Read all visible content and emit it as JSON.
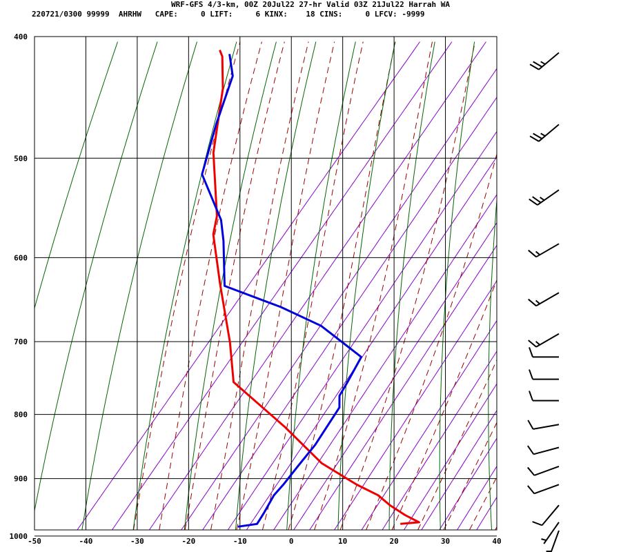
{
  "header": {
    "title": "WRF-GFS 4/3-km, 00Z 20Jul22 27-hr Valid 03Z 21Jul22 Harrah WA",
    "stats": "220721/0300 99999  AHRHW   CAPE:     0 LIFT:     6 KINX:    18 CINS:     0 LFCV: -9999"
  },
  "chart_data": {
    "type": "line",
    "chart_kind": "skew-T log-p sounding",
    "title": "WRF-GFS 4/3-km, 00Z 20Jul22 27-hr Valid 03Z 21Jul22 Harrah WA",
    "xlabel": "",
    "ylabel": "",
    "x_ticks": [
      -50,
      -40,
      -30,
      -20,
      -10,
      0,
      10,
      20,
      30,
      40
    ],
    "x_tick_labels": [
      "-50",
      "-40",
      "-30",
      "-20",
      "-10",
      "0",
      "10",
      "20",
      "30",
      "40"
    ],
    "y_ticks": [
      400,
      500,
      600,
      700,
      800,
      900,
      1000
    ],
    "y_tick_labels": [
      "400",
      "500",
      "600",
      "700",
      "800",
      "900",
      "1000"
    ],
    "grid": true,
    "colors": {
      "temperature": "#ee0000",
      "dewpoint": "#0000dd",
      "dry_adiabat": "#006600",
      "moist_adiabat": "#990000",
      "mixing_ratio": "#8800cc",
      "grid": "#000000"
    },
    "series": [
      {
        "points": [
          [
            20.3,
            978
          ],
          [
            23.7,
            975
          ],
          [
            19.8,
            962
          ],
          [
            15.4,
            945
          ],
          [
            11.6,
            928
          ],
          [
            5.8,
            910
          ],
          [
            -4.3,
            875
          ],
          [
            -17.2,
            818
          ],
          [
            -33.9,
            754
          ],
          [
            -40.7,
            701
          ],
          [
            -51.7,
            629
          ],
          [
            -60.5,
            575
          ],
          [
            -62.6,
            556
          ],
          [
            -73.0,
            495
          ],
          [
            -81.0,
            440
          ],
          [
            -86.0,
            415
          ],
          [
            -87.5,
            410
          ]
        ]
      },
      {
        "points": [
          [
            -10.9,
            983
          ],
          [
            -7.6,
            978
          ],
          [
            -7.9,
            960
          ],
          [
            -8.7,
            928
          ],
          [
            -8.5,
            910
          ],
          [
            -8.5,
            880
          ],
          [
            -8.4,
            846
          ],
          [
            -9.4,
            790
          ],
          [
            -11.2,
            773
          ],
          [
            -11.7,
            755
          ],
          [
            -12.9,
            720
          ],
          [
            -25.5,
            680
          ],
          [
            -36.2,
            657
          ],
          [
            -50.4,
            632
          ],
          [
            -57.5,
            582
          ],
          [
            -61.2,
            560
          ],
          [
            -71.9,
            515
          ],
          [
            -76.8,
            470
          ],
          [
            -81.0,
            430
          ],
          [
            -85.0,
            413
          ]
        ]
      }
    ],
    "wind_barbs": [
      {
        "p": 412,
        "dir": 230,
        "spd": 25
      },
      {
        "p": 470,
        "dir": 230,
        "spd": 25
      },
      {
        "p": 530,
        "dir": 235,
        "spd": 25
      },
      {
        "p": 585,
        "dir": 240,
        "spd": 15
      },
      {
        "p": 640,
        "dir": 240,
        "spd": 15
      },
      {
        "p": 690,
        "dir": 240,
        "spd": 15
      },
      {
        "p": 720,
        "dir": 270,
        "spd": 10
      },
      {
        "p": 750,
        "dir": 270,
        "spd": 10
      },
      {
        "p": 780,
        "dir": 270,
        "spd": 10
      },
      {
        "p": 815,
        "dir": 260,
        "spd": 10
      },
      {
        "p": 850,
        "dir": 255,
        "spd": 10
      },
      {
        "p": 880,
        "dir": 250,
        "spd": 10
      },
      {
        "p": 910,
        "dir": 250,
        "spd": 10
      },
      {
        "p": 945,
        "dir": 220,
        "spd": 10
      },
      {
        "p": 975,
        "dir": 215,
        "spd": 5
      },
      {
        "p": 990,
        "dir": 200,
        "spd": 5
      }
    ]
  }
}
